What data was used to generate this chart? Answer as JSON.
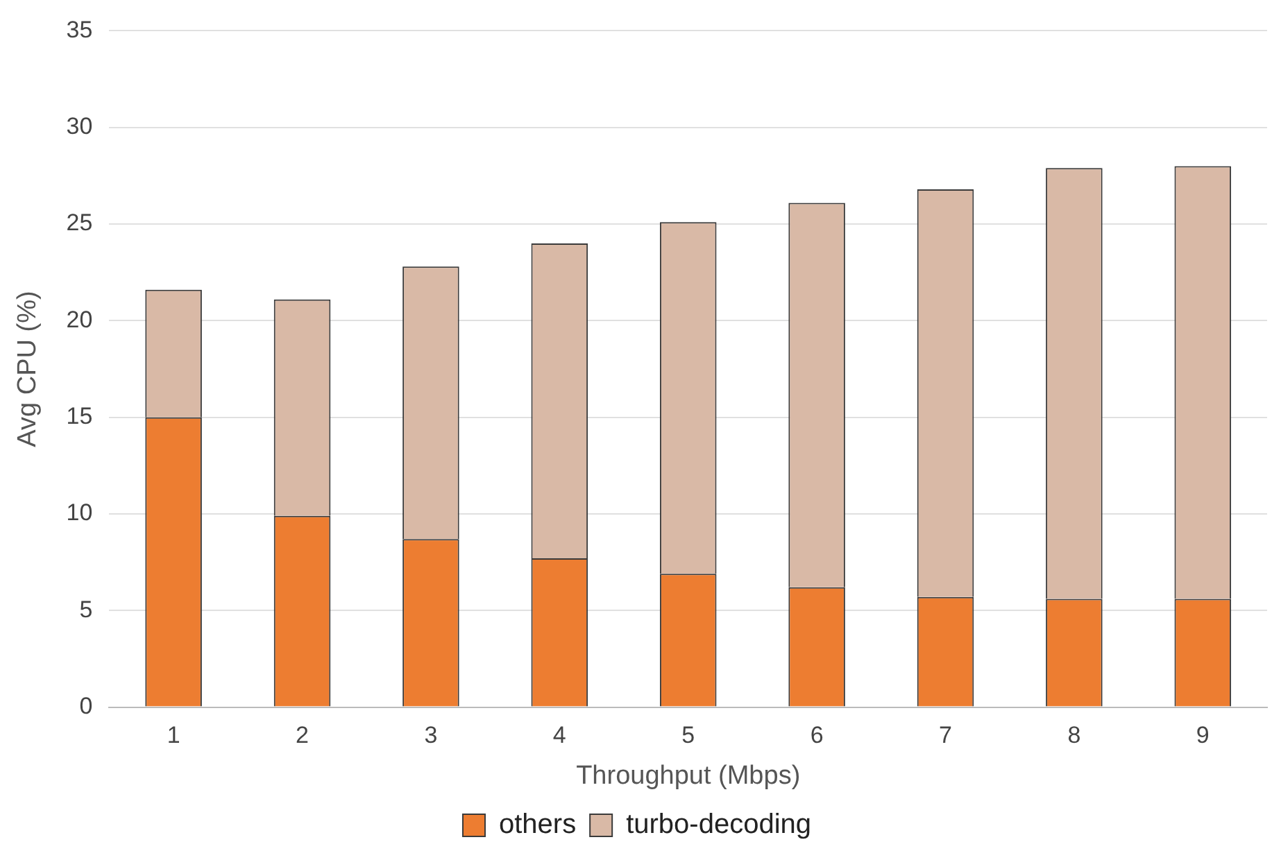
{
  "chart_data": {
    "type": "bar",
    "stacked": true,
    "xlabel": "Throughput (Mbps)",
    "ylabel": "Avg CPU (%)",
    "categories": [
      "1",
      "2",
      "3",
      "4",
      "5",
      "6",
      "7",
      "8",
      "9"
    ],
    "series": [
      {
        "name": "others",
        "color": "#ed7d31",
        "values": [
          15.0,
          9.9,
          8.7,
          7.7,
          6.9,
          6.2,
          5.7,
          5.6,
          5.6
        ]
      },
      {
        "name": "turbo-decoding",
        "color": "#d9b9a6",
        "values": [
          6.6,
          11.2,
          14.1,
          16.3,
          18.2,
          19.9,
          21.1,
          22.3,
          22.4
        ]
      }
    ],
    "ylim": [
      0,
      35
    ],
    "yticks": [
      0,
      5,
      10,
      15,
      20,
      25,
      30,
      35
    ],
    "grid": "y",
    "legend": "bottom"
  }
}
